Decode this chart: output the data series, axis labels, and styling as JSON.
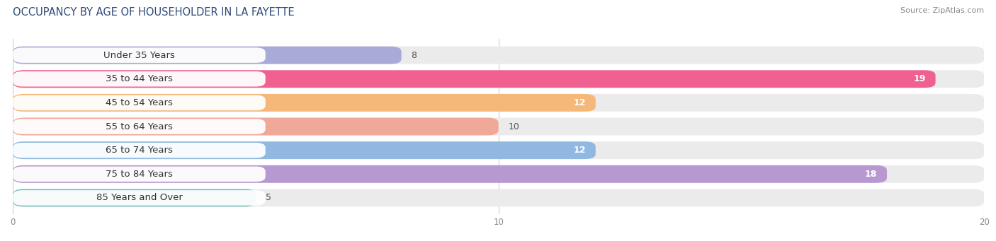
{
  "title": "OCCUPANCY BY AGE OF HOUSEHOLDER IN LA FAYETTE",
  "source": "Source: ZipAtlas.com",
  "categories": [
    "Under 35 Years",
    "35 to 44 Years",
    "45 to 54 Years",
    "55 to 64 Years",
    "65 to 74 Years",
    "75 to 84 Years",
    "85 Years and Over"
  ],
  "values": [
    8,
    19,
    12,
    10,
    12,
    18,
    5
  ],
  "bar_colors": [
    "#a8aad8",
    "#f06090",
    "#f5b878",
    "#f0a898",
    "#90b8e0",
    "#b898d0",
    "#78c0bc"
  ],
  "bar_bg_color": "#ebebeb",
  "label_pill_color": "#ffffff",
  "xlim_data": [
    0,
    20
  ],
  "xticks": [
    0,
    10,
    20
  ],
  "background_color": "#ffffff",
  "title_fontsize": 10.5,
  "label_fontsize": 9.5,
  "value_fontsize": 9,
  "bar_height": 0.68,
  "label_color": "#333333",
  "value_inside_color": "#ffffff",
  "value_outside_color": "#555555",
  "value_inside_threshold": 11,
  "row_bg_color": "#f5f5f5"
}
